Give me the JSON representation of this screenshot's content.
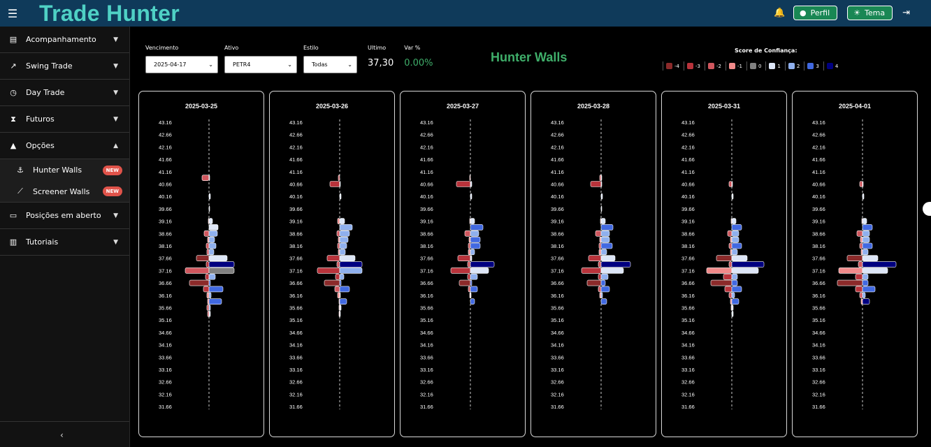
{
  "header": {
    "menu_icon": "hamburger-icon",
    "brand": "Trade Hunter",
    "profile_label": "Perfil",
    "theme_label": "Tema"
  },
  "sidebar": {
    "items": [
      {
        "label": "Acompanhamento",
        "icon": "chart-icon"
      },
      {
        "label": "Swing Trade",
        "icon": "trend-icon"
      },
      {
        "label": "Day Trade",
        "icon": "clock-icon"
      },
      {
        "label": "Futuros",
        "icon": "hourglass-icon"
      },
      {
        "label": "Opções",
        "icon": "rocket-icon"
      }
    ],
    "sub_items": [
      {
        "label": "Hunter Walls",
        "badge": "NEW",
        "icon": "anchor-icon"
      },
      {
        "label": "Screener Walls",
        "badge": "NEW",
        "icon": "screener-icon"
      }
    ],
    "items_after": [
      {
        "label": "Posições em aberto",
        "icon": "positions-icon"
      },
      {
        "label": "Tutoriais",
        "icon": "book-icon"
      }
    ]
  },
  "filters": {
    "vencimento_label": "Vencimento",
    "vencimento_value": "2025-04-17",
    "ativo_label": "Ativo",
    "ativo_value": "PETR4",
    "estilo_label": "Estilo",
    "estilo_value": "Todas",
    "ultimo_label": "Ultimo",
    "ultimo_value": "37,30",
    "var_label": "Var %",
    "var_value": "0.00%"
  },
  "page_title": "Hunter Walls",
  "legend": {
    "title": "Score de Confiança:",
    "entries": [
      {
        "label": "-4",
        "color": "#8b2a2a"
      },
      {
        "label": "-3",
        "color": "#b8333b"
      },
      {
        "label": "-2",
        "color": "#d0575e"
      },
      {
        "label": "-1",
        "color": "#f08a8a"
      },
      {
        "label": "0",
        "color": "#808080"
      },
      {
        "label": "1",
        "color": "#dde6f7"
      },
      {
        "label": "2",
        "color": "#8fb0ee"
      },
      {
        "label": "3",
        "color": "#4169e1"
      },
      {
        "label": "4",
        "color": "#000080"
      }
    ]
  },
  "chart_data": [
    {
      "type": "bar",
      "title": "2025-03-25",
      "price_levels": [
        "43.16",
        "42.66",
        "42.16",
        "41.66",
        "41.16",
        "40.66",
        "40.16",
        "39.66",
        "39.16",
        "38.66",
        "38.16",
        "37.66",
        "37.16",
        "36.66",
        "36.16",
        "35.66",
        "35.16",
        "34.66",
        "34.16",
        "33.66",
        "33.16",
        "32.66",
        "32.16",
        "31.66"
      ],
      "bars": [
        {
          "price": 40.91,
          "left": 10,
          "right": 1,
          "ls": -2,
          "rs": 1
        },
        {
          "price": 40.16,
          "left": 0,
          "right": 2,
          "ls": 0,
          "rs": 1
        },
        {
          "price": 39.66,
          "left": 0,
          "right": 1,
          "ls": 0,
          "rs": 1
        },
        {
          "price": 39.16,
          "left": 1,
          "right": 5,
          "ls": -1,
          "rs": 1
        },
        {
          "price": 38.91,
          "left": 0,
          "right": 13,
          "ls": 0,
          "rs": 1
        },
        {
          "price": 38.66,
          "left": 7,
          "right": 12,
          "ls": -2,
          "rs": 2
        },
        {
          "price": 38.41,
          "left": 2,
          "right": 8,
          "ls": -1,
          "rs": 2
        },
        {
          "price": 38.16,
          "left": 4,
          "right": 10,
          "ls": -2,
          "rs": 2
        },
        {
          "price": 37.91,
          "left": 3,
          "right": 7,
          "ls": -2,
          "rs": 2
        },
        {
          "price": 37.66,
          "left": 18,
          "right": 26,
          "ls": -4,
          "rs": 1
        },
        {
          "price": 37.41,
          "left": 4,
          "right": 36,
          "ls": -3,
          "rs": 4
        },
        {
          "price": 37.16,
          "left": 34,
          "right": 36,
          "ls": -2,
          "rs": 0
        },
        {
          "price": 36.91,
          "left": 5,
          "right": 9,
          "ls": -3,
          "rs": 2
        },
        {
          "price": 36.66,
          "left": 28,
          "right": 2,
          "ls": -4,
          "rs": 3
        },
        {
          "price": 36.41,
          "left": 8,
          "right": 20,
          "ls": -3,
          "rs": 3
        },
        {
          "price": 36.16,
          "left": 3,
          "right": 3,
          "ls": -1,
          "rs": 2
        },
        {
          "price": 35.91,
          "left": 2,
          "right": 18,
          "ls": -1,
          "rs": 3
        },
        {
          "price": 35.66,
          "left": 3,
          "right": 2,
          "ls": -2,
          "rs": 2
        },
        {
          "price": 35.41,
          "left": 2,
          "right": 2,
          "ls": -2,
          "rs": 1
        }
      ]
    },
    {
      "type": "bar",
      "title": "2025-03-26",
      "price_levels": [
        "43.16",
        "42.66",
        "42.16",
        "41.66",
        "41.16",
        "40.66",
        "40.16",
        "39.66",
        "39.16",
        "38.66",
        "38.16",
        "37.66",
        "37.16",
        "36.66",
        "36.16",
        "35.66",
        "35.16",
        "34.66",
        "34.16",
        "33.66",
        "33.16",
        "32.66",
        "32.16",
        "31.66"
      ],
      "bars": [
        {
          "price": 40.91,
          "left": 2,
          "right": 0,
          "ls": -2,
          "rs": 1
        },
        {
          "price": 40.66,
          "left": 14,
          "right": 1,
          "ls": -3,
          "rs": 1
        },
        {
          "price": 40.16,
          "left": 0,
          "right": 2,
          "ls": 0,
          "rs": 1
        },
        {
          "price": 39.16,
          "left": 3,
          "right": 7,
          "ls": -1,
          "rs": 1
        },
        {
          "price": 38.91,
          "left": 0,
          "right": 18,
          "ls": 0,
          "rs": 2
        },
        {
          "price": 38.66,
          "left": 4,
          "right": 14,
          "ls": -2,
          "rs": 2
        },
        {
          "price": 38.41,
          "left": 2,
          "right": 12,
          "ls": -1,
          "rs": 2
        },
        {
          "price": 38.16,
          "left": 3,
          "right": 10,
          "ls": -2,
          "rs": 2
        },
        {
          "price": 37.91,
          "left": 2,
          "right": 8,
          "ls": -1,
          "rs": 2
        },
        {
          "price": 37.66,
          "left": 18,
          "right": 22,
          "ls": -3,
          "rs": 1
        },
        {
          "price": 37.41,
          "left": 4,
          "right": 32,
          "ls": -2,
          "rs": 4
        },
        {
          "price": 37.16,
          "left": 32,
          "right": 32,
          "ls": -3,
          "rs": 2
        },
        {
          "price": 36.91,
          "left": 6,
          "right": 6,
          "ls": -3,
          "rs": 2
        },
        {
          "price": 36.66,
          "left": 22,
          "right": 2,
          "ls": -4,
          "rs": 3
        },
        {
          "price": 36.41,
          "left": 7,
          "right": 14,
          "ls": -2,
          "rs": 3
        },
        {
          "price": 36.16,
          "left": 3,
          "right": 1,
          "ls": -1,
          "rs": 1
        },
        {
          "price": 35.91,
          "left": 1,
          "right": 10,
          "ls": -1,
          "rs": 3
        },
        {
          "price": 35.66,
          "left": 1,
          "right": 2,
          "ls": -1,
          "rs": 1
        },
        {
          "price": 35.41,
          "left": 1,
          "right": 1,
          "ls": -1,
          "rs": 1
        }
      ]
    },
    {
      "type": "bar",
      "title": "2025-03-27",
      "price_levels": [
        "43.16",
        "42.66",
        "42.16",
        "41.66",
        "41.16",
        "40.66",
        "40.16",
        "39.66",
        "39.16",
        "38.66",
        "38.16",
        "37.66",
        "37.16",
        "36.66",
        "36.16",
        "35.66",
        "35.16",
        "34.66",
        "34.16",
        "33.66",
        "33.16",
        "32.66",
        "32.16",
        "31.66"
      ],
      "bars": [
        {
          "price": 40.91,
          "left": 1,
          "right": 0,
          "ls": -1,
          "rs": 1
        },
        {
          "price": 40.66,
          "left": 20,
          "right": 2,
          "ls": -3,
          "rs": 1
        },
        {
          "price": 40.16,
          "left": 0,
          "right": 2,
          "ls": 0,
          "rs": 1
        },
        {
          "price": 39.16,
          "left": 1,
          "right": 6,
          "ls": -1,
          "rs": 1
        },
        {
          "price": 38.91,
          "left": 0,
          "right": 18,
          "ls": 0,
          "rs": 3
        },
        {
          "price": 38.66,
          "left": 8,
          "right": 12,
          "ls": -2,
          "rs": 2
        },
        {
          "price": 38.41,
          "left": 2,
          "right": 14,
          "ls": -1,
          "rs": 3
        },
        {
          "price": 38.16,
          "left": 3,
          "right": 14,
          "ls": -2,
          "rs": 3
        },
        {
          "price": 37.91,
          "left": 3,
          "right": 6,
          "ls": -1,
          "rs": 2
        },
        {
          "price": 37.66,
          "left": 18,
          "right": 2,
          "ls": -3,
          "rs": 1
        },
        {
          "price": 37.41,
          "left": 4,
          "right": 34,
          "ls": -2,
          "rs": 4
        },
        {
          "price": 37.16,
          "left": 28,
          "right": 26,
          "ls": -3,
          "rs": 1
        },
        {
          "price": 36.91,
          "left": 4,
          "right": 10,
          "ls": -3,
          "rs": 2
        },
        {
          "price": 36.66,
          "left": 16,
          "right": 2,
          "ls": -4,
          "rs": 3
        },
        {
          "price": 36.41,
          "left": 3,
          "right": 10,
          "ls": -2,
          "rs": 3
        },
        {
          "price": 36.16,
          "left": 1,
          "right": 1,
          "ls": -1,
          "rs": 1
        },
        {
          "price": 35.91,
          "left": 0,
          "right": 6,
          "ls": 0,
          "rs": 3
        }
      ]
    },
    {
      "type": "bar",
      "title": "2025-03-28",
      "price_levels": [
        "43.16",
        "42.66",
        "42.16",
        "41.66",
        "41.16",
        "40.66",
        "40.16",
        "39.66",
        "39.16",
        "38.66",
        "38.16",
        "37.66",
        "37.16",
        "36.66",
        "36.16",
        "35.66",
        "35.16",
        "34.66",
        "34.16",
        "33.66",
        "33.16",
        "32.66",
        "32.16",
        "31.66"
      ],
      "bars": [
        {
          "price": 40.91,
          "left": 2,
          "right": 1,
          "ls": -2,
          "rs": 1
        },
        {
          "price": 40.66,
          "left": 15,
          "right": 1,
          "ls": -3,
          "rs": 1
        },
        {
          "price": 40.16,
          "left": 0,
          "right": 2,
          "ls": 0,
          "rs": 1
        },
        {
          "price": 39.66,
          "left": 0,
          "right": 1,
          "ls": 0,
          "rs": 1
        },
        {
          "price": 39.16,
          "left": 1,
          "right": 6,
          "ls": -1,
          "rs": 1
        },
        {
          "price": 38.91,
          "left": 0,
          "right": 17,
          "ls": 0,
          "rs": 3
        },
        {
          "price": 38.66,
          "left": 8,
          "right": 12,
          "ls": -2,
          "rs": 2
        },
        {
          "price": 38.41,
          "left": 2,
          "right": 12,
          "ls": -1,
          "rs": 2
        },
        {
          "price": 38.16,
          "left": 3,
          "right": 16,
          "ls": -2,
          "rs": 3
        },
        {
          "price": 37.91,
          "left": 3,
          "right": 8,
          "ls": -1,
          "rs": 2
        },
        {
          "price": 37.66,
          "left": 18,
          "right": 20,
          "ls": -3,
          "rs": 1
        },
        {
          "price": 37.41,
          "left": 4,
          "right": 42,
          "ls": -2,
          "rs": 4
        },
        {
          "price": 37.16,
          "left": 28,
          "right": 32,
          "ls": -3,
          "rs": 1
        },
        {
          "price": 36.91,
          "left": 4,
          "right": 10,
          "ls": -3,
          "rs": 2
        },
        {
          "price": 36.66,
          "left": 20,
          "right": 6,
          "ls": -4,
          "rs": 3
        },
        {
          "price": 36.41,
          "left": 4,
          "right": 12,
          "ls": -2,
          "rs": 3
        },
        {
          "price": 36.16,
          "left": 2,
          "right": 2,
          "ls": -1,
          "rs": 2
        },
        {
          "price": 35.91,
          "left": 0,
          "right": 8,
          "ls": 0,
          "rs": 3
        }
      ]
    },
    {
      "type": "bar",
      "title": "2025-03-31",
      "price_levels": [
        "43.16",
        "42.66",
        "42.16",
        "41.66",
        "41.16",
        "40.66",
        "40.16",
        "39.66",
        "39.16",
        "38.66",
        "38.16",
        "37.66",
        "37.16",
        "36.66",
        "36.16",
        "35.66",
        "35.16",
        "34.66",
        "34.16",
        "33.66",
        "33.16",
        "32.66",
        "32.16",
        "31.66"
      ],
      "bars": [
        {
          "price": 40.66,
          "left": 4,
          "right": 1,
          "ls": -2,
          "rs": 1
        },
        {
          "price": 40.16,
          "left": 0,
          "right": 2,
          "ls": 0,
          "rs": 1
        },
        {
          "price": 39.16,
          "left": 1,
          "right": 6,
          "ls": -1,
          "rs": 1
        },
        {
          "price": 38.91,
          "left": 0,
          "right": 14,
          "ls": 0,
          "rs": 3
        },
        {
          "price": 38.66,
          "left": 6,
          "right": 10,
          "ls": -2,
          "rs": 2
        },
        {
          "price": 38.41,
          "left": 2,
          "right": 10,
          "ls": -1,
          "rs": 2
        },
        {
          "price": 38.16,
          "left": 4,
          "right": 14,
          "ls": -2,
          "rs": 3
        },
        {
          "price": 37.91,
          "left": 2,
          "right": 8,
          "ls": -1,
          "rs": 2
        },
        {
          "price": 37.66,
          "left": 22,
          "right": 22,
          "ls": -4,
          "rs": 1
        },
        {
          "price": 37.41,
          "left": 4,
          "right": 46,
          "ls": -2,
          "rs": 4
        },
        {
          "price": 37.16,
          "left": 36,
          "right": 38,
          "ls": -1,
          "rs": 1
        },
        {
          "price": 36.91,
          "left": 12,
          "right": 8,
          "ls": -3,
          "rs": 2
        },
        {
          "price": 36.66,
          "left": 30,
          "right": 8,
          "ls": -4,
          "rs": 3
        },
        {
          "price": 36.41,
          "left": 10,
          "right": 14,
          "ls": -3,
          "rs": 3
        },
        {
          "price": 36.16,
          "left": 4,
          "right": 4,
          "ls": -2,
          "rs": 2
        },
        {
          "price": 35.91,
          "left": 2,
          "right": 10,
          "ls": -1,
          "rs": 3
        },
        {
          "price": 35.66,
          "left": 1,
          "right": 2,
          "ls": -1,
          "rs": 1
        },
        {
          "price": 35.41,
          "left": 0,
          "right": 2,
          "ls": 0,
          "rs": 1
        }
      ]
    },
    {
      "type": "bar",
      "title": "2025-04-01",
      "price_levels": [
        "43.16",
        "42.66",
        "42.16",
        "41.66",
        "41.16",
        "40.66",
        "40.16",
        "39.66",
        "39.16",
        "38.66",
        "38.16",
        "37.66",
        "37.16",
        "36.66",
        "36.16",
        "35.66",
        "35.16",
        "34.66",
        "34.16",
        "33.66",
        "33.16",
        "32.66",
        "32.16",
        "31.66"
      ],
      "bars": [
        {
          "price": 40.66,
          "left": 4,
          "right": 1,
          "ls": -2,
          "rs": 1
        },
        {
          "price": 40.16,
          "left": 0,
          "right": 2,
          "ls": 0,
          "rs": 1
        },
        {
          "price": 39.16,
          "left": 1,
          "right": 6,
          "ls": -1,
          "rs": 1
        },
        {
          "price": 38.91,
          "left": 0,
          "right": 14,
          "ls": 0,
          "rs": 3
        },
        {
          "price": 38.66,
          "left": 8,
          "right": 10,
          "ls": -2,
          "rs": 2
        },
        {
          "price": 38.41,
          "left": 3,
          "right": 10,
          "ls": -1,
          "rs": 2
        },
        {
          "price": 38.16,
          "left": 4,
          "right": 14,
          "ls": -2,
          "rs": 3
        },
        {
          "price": 37.91,
          "left": 2,
          "right": 8,
          "ls": -1,
          "rs": 2
        },
        {
          "price": 37.66,
          "left": 22,
          "right": 22,
          "ls": -4,
          "rs": 1
        },
        {
          "price": 37.41,
          "left": 6,
          "right": 48,
          "ls": -2,
          "rs": 4
        },
        {
          "price": 37.16,
          "left": 34,
          "right": 36,
          "ls": -1,
          "rs": 1
        },
        {
          "price": 36.91,
          "left": 10,
          "right": 8,
          "ls": -3,
          "rs": 2
        },
        {
          "price": 36.66,
          "left": 36,
          "right": 8,
          "ls": -4,
          "rs": 3
        },
        {
          "price": 36.41,
          "left": 10,
          "right": 18,
          "ls": -3,
          "rs": 3
        },
        {
          "price": 36.16,
          "left": 4,
          "right": 4,
          "ls": -2,
          "rs": 2
        },
        {
          "price": 35.91,
          "left": 2,
          "right": 10,
          "ls": -1,
          "rs": 4
        }
      ]
    }
  ]
}
